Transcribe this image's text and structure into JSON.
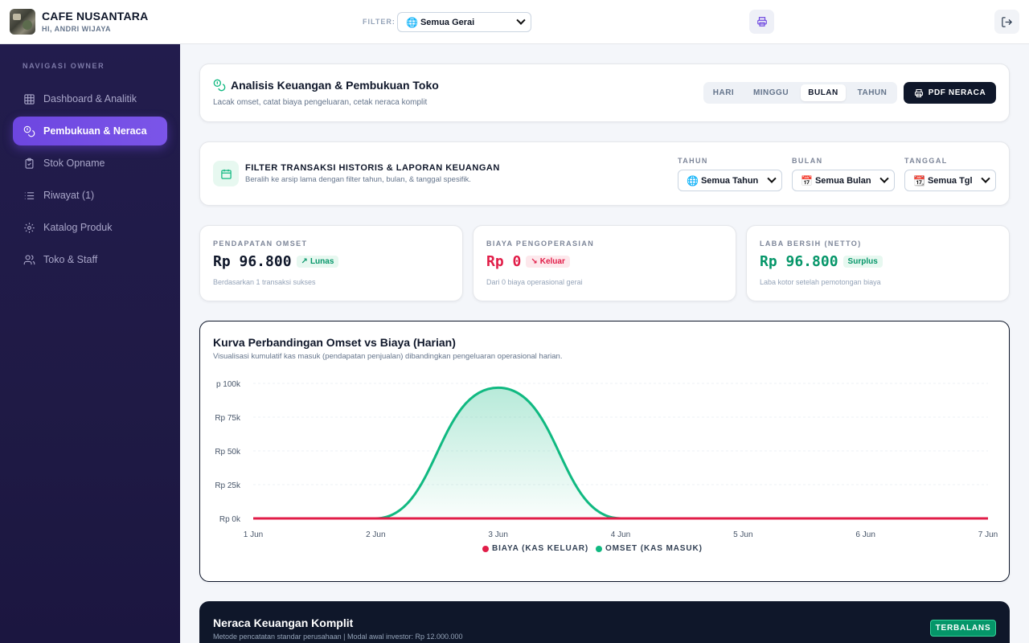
{
  "header": {
    "title": "CAFE NUSANTARA",
    "subtitle": "HI, ANDRI WIJAYA",
    "filter_label": "FILTER:",
    "filter_value": "Semua Gerai"
  },
  "sidebar": {
    "section_title": "NAVIGASI OWNER",
    "items": [
      {
        "label": "Dashboard & Analitik",
        "icon": "grid-icon",
        "active": false
      },
      {
        "label": "Pembukuan & Neraca",
        "icon": "coins-icon",
        "active": true
      },
      {
        "label": "Stok Opname",
        "icon": "clipboard-icon",
        "active": false
      },
      {
        "label": "Riwayat (1)",
        "icon": "list-icon",
        "active": false
      },
      {
        "label": "Katalog Produk",
        "icon": "gear-icon",
        "active": false
      },
      {
        "label": "Toko & Staff",
        "icon": "users-icon",
        "active": false
      }
    ]
  },
  "page": {
    "title": "Analisis Keuangan & Pembukuan Toko",
    "subtitle": "Lacak omset, catat biaya pengeluaran, cetak neraca komplit",
    "periods": [
      "HARI",
      "MINGGU",
      "BULAN",
      "TAHUN"
    ],
    "active_period": "BULAN",
    "pdf_button": "PDF NERACA"
  },
  "filter_section": {
    "title": "FILTER TRANSAKSI HISTORIS & LAPORAN KEUANGAN",
    "subtitle": "Beralih ke arsip lama dengan filter tahun, bulan, & tanggal spesifik.",
    "year_label": "TAHUN",
    "year_value": "Semua Tahun",
    "month_label": "BULAN",
    "month_value": "Semua Bulan",
    "date_label": "TANGGAL",
    "date_value": "Semua Tgl"
  },
  "stats": {
    "revenue": {
      "label": "PENDAPATAN OMSET",
      "value": "Rp 96.800",
      "badge": "Lunas",
      "note": "Berdasarkan 1 transaksi sukses"
    },
    "expense": {
      "label": "BIAYA PENGOPERASIAN",
      "value": "Rp 0",
      "badge": "Keluar",
      "note": "Dari 0 biaya operasional gerai"
    },
    "profit": {
      "label": "LABA BERSIH (NETTO)",
      "value": "Rp 96.800",
      "badge": "Surplus",
      "note": "Laba kotor setelah pemotongan biaya"
    }
  },
  "colors": {
    "accent": "#6d46e0",
    "omset": "#10b981",
    "biaya": "#e11d48",
    "dark": "#0f172a"
  },
  "chart_data": {
    "type": "area",
    "title": "Kurva Perbandingan Omset vs Biaya (Harian)",
    "subtitle": "Visualisasi kumulatif kas masuk (pendapatan penjualan) dibandingkan pengeluaran operasional harian.",
    "categories": [
      "1 Jun",
      "2 Jun",
      "3 Jun",
      "4 Jun",
      "5 Jun",
      "6 Jun",
      "7 Jun"
    ],
    "y_ticks": [
      "Rp 0k",
      "Rp 25k",
      "Rp 50k",
      "Rp 75k",
      "p 100k"
    ],
    "ylim": [
      0,
      100000
    ],
    "series": [
      {
        "name": "BIAYA (KAS KELUAR)",
        "values": [
          0,
          0,
          0,
          0,
          0,
          0,
          0
        ]
      },
      {
        "name": "OMSET (KAS MASUK)",
        "values": [
          0,
          0,
          96800,
          0,
          0,
          0,
          0
        ]
      }
    ],
    "grid": true,
    "legend": "bottom-center"
  },
  "balance": {
    "title": "Neraca Keuangan Komplit",
    "subtitle": "Metode pencatatan standar perusahaan | Modal awal investor: Rp 12.000.000",
    "badge": "TERBALANS"
  }
}
